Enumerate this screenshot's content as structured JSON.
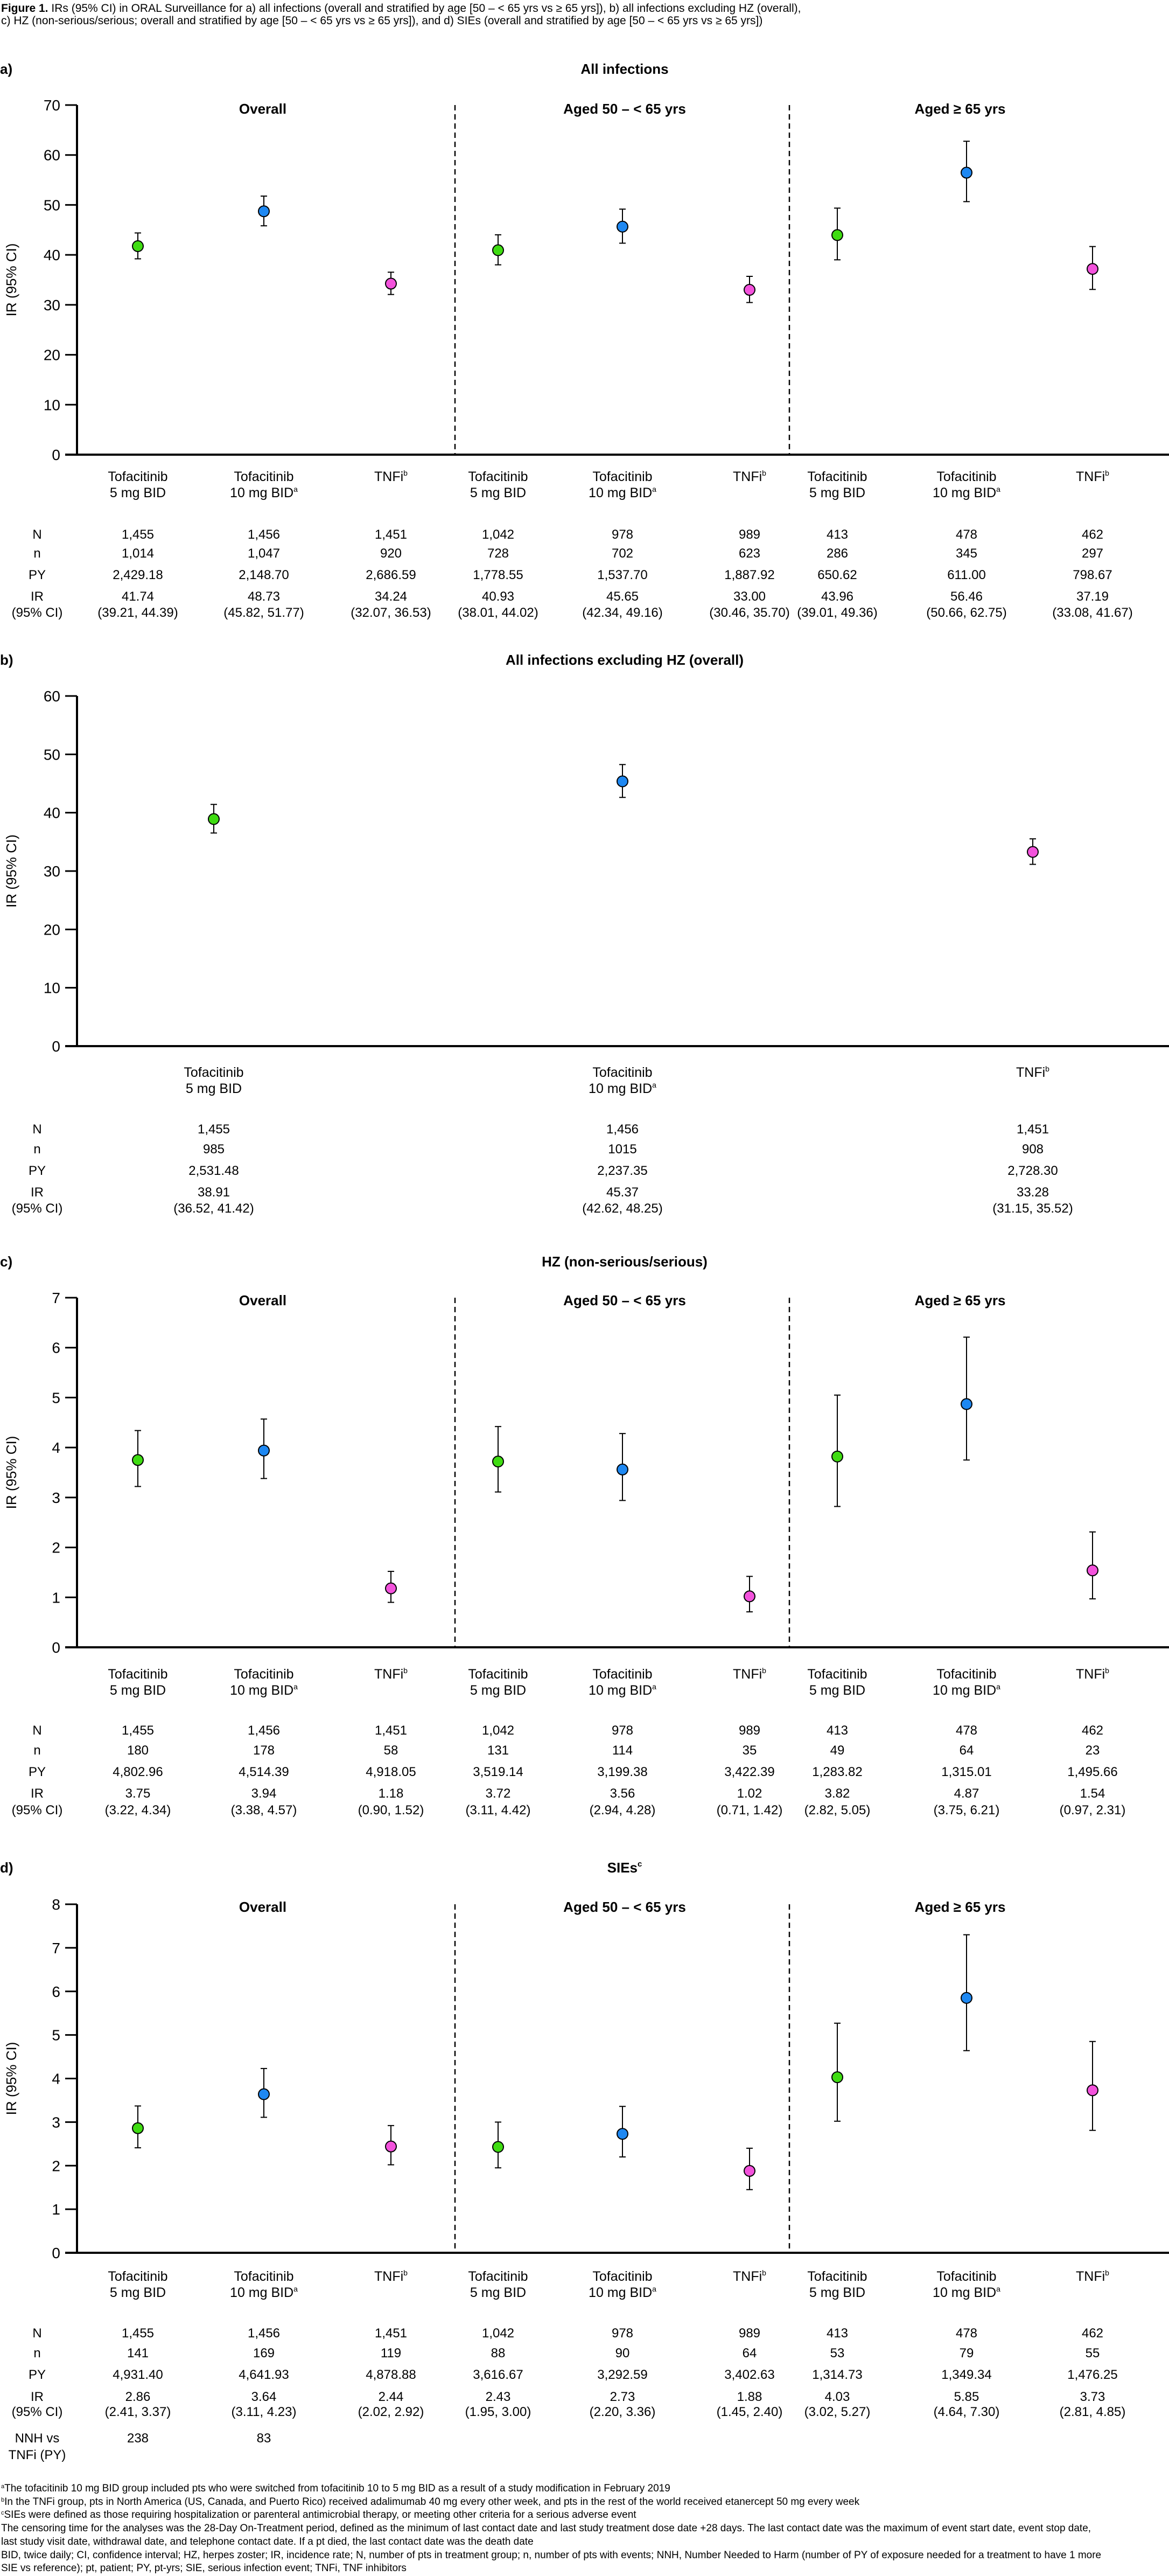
{
  "caption": {
    "label": "Figure 1.",
    "line1": " IRs (95% CI) in ORAL Surveillance for a) all infections (overall and stratified by age [50 – < 65 yrs vs ≥ 65 yrs]), b) all infections excluding HZ (overall),",
    "line2": "c) HZ (non-serious/serious; overall and stratified by age [50 – < 65 yrs vs ≥ 65 yrs]), and d) SIEs (overall and stratified by age [50 – < 65 yrs vs ≥ 65 yrs])"
  },
  "colors": {
    "tofa5": "#3fdc12",
    "tofa10": "#1e88f2",
    "tnfi": "#f352dc"
  },
  "chart_data": [
    {
      "type": "scatter",
      "panel_label": "a)",
      "title": "All infections",
      "title_sup": "",
      "ylabel": "IR (95% CI)",
      "ylim": [
        0,
        70
      ],
      "yticks": [
        "0",
        "10",
        "20",
        "30",
        "40",
        "50",
        "60",
        "70"
      ],
      "grid": false,
      "sections": [
        "Overall",
        "Aged 50 – < 65 yrs",
        "Aged ≥ 65 yrs"
      ],
      "categories": [
        {
          "line1": "Tofacitinib",
          "line2": "5 mg BID",
          "sup": ""
        },
        {
          "line1": "Tofacitinib",
          "line2": "10 mg BID",
          "sup": "a"
        },
        {
          "line1": "TNFi",
          "line2": "",
          "sup": "b"
        },
        {
          "line1": "Tofacitinib",
          "line2": "5 mg BID",
          "sup": ""
        },
        {
          "line1": "Tofacitinib",
          "line2": "10 mg BID",
          "sup": "a"
        },
        {
          "line1": "TNFi",
          "line2": "",
          "sup": "b"
        },
        {
          "line1": "Tofacitinib",
          "line2": "5 mg BID",
          "sup": ""
        },
        {
          "line1": "Tofacitinib",
          "line2": "10 mg BID",
          "sup": "a"
        },
        {
          "line1": "TNFi",
          "line2": "",
          "sup": "b"
        }
      ],
      "values": [
        41.74,
        48.73,
        34.24,
        40.93,
        45.65,
        33.0,
        43.96,
        56.46,
        37.19
      ],
      "ci_low": [
        39.21,
        45.82,
        32.07,
        38.01,
        42.34,
        30.46,
        39.01,
        50.66,
        33.08
      ],
      "ci_high": [
        44.39,
        51.77,
        36.53,
        44.02,
        49.16,
        35.7,
        49.36,
        62.75,
        41.67
      ],
      "table": {
        "row_labels": [
          "N",
          "n",
          "PY",
          "IR",
          "(95% CI)"
        ],
        "columns": [
          [
            "1,455",
            "1,014",
            "2,429.18",
            "41.74",
            "(39.21, 44.39)"
          ],
          [
            "1,456",
            "1,047",
            "2,148.70",
            "48.73",
            "(45.82, 51.77)"
          ],
          [
            "1,451",
            "920",
            "2,686.59",
            "34.24",
            "(32.07, 36.53)"
          ],
          [
            "1,042",
            "728",
            "1,778.55",
            "40.93",
            "(38.01, 44.02)"
          ],
          [
            "978",
            "702",
            "1,537.70",
            "45.65",
            "(42.34, 49.16)"
          ],
          [
            "989",
            "623",
            "1,887.92",
            "33.00",
            "(30.46, 35.70)"
          ],
          [
            "413",
            "286",
            "650.62",
            "43.96",
            "(39.01, 49.36)"
          ],
          [
            "478",
            "345",
            "611.00",
            "56.46",
            "(50.66, 62.75)"
          ],
          [
            "462",
            "297",
            "798.67",
            "37.19",
            "(33.08, 41.67)"
          ]
        ]
      }
    },
    {
      "type": "scatter",
      "panel_label": "b)",
      "title": "All infections excluding HZ (overall)",
      "title_sup": "",
      "ylabel": "IR (95% CI)",
      "ylim": [
        0,
        60
      ],
      "yticks": [
        "0",
        "10",
        "20",
        "30",
        "40",
        "50",
        "60"
      ],
      "grid": false,
      "sections": [],
      "categories": [
        {
          "line1": "Tofacitinib",
          "line2": "5 mg BID",
          "sup": ""
        },
        {
          "line1": "Tofacitinib",
          "line2": "10 mg BID",
          "sup": "a"
        },
        {
          "line1": "TNFi",
          "line2": "",
          "sup": "b"
        }
      ],
      "values": [
        38.91,
        45.37,
        33.28
      ],
      "ci_low": [
        36.52,
        42.62,
        31.15
      ],
      "ci_high": [
        41.42,
        48.25,
        35.52
      ],
      "table": {
        "row_labels": [
          "N",
          "n",
          "PY",
          "IR",
          "(95% CI)"
        ],
        "columns": [
          [
            "1,455",
            "985",
            "2,531.48",
            "38.91",
            "(36.52, 41.42)"
          ],
          [
            "1,456",
            "1015",
            "2,237.35",
            "45.37",
            "(42.62, 48.25)"
          ],
          [
            "1,451",
            "908",
            "2,728.30",
            "33.28",
            "(31.15, 35.52)"
          ]
        ]
      }
    },
    {
      "type": "scatter",
      "panel_label": "c)",
      "title": "HZ (non-serious/serious)",
      "title_sup": "",
      "ylabel": "IR (95% CI)",
      "ylim": [
        0,
        7
      ],
      "yticks": [
        "0",
        "1",
        "2",
        "3",
        "4",
        "5",
        "6",
        "7"
      ],
      "grid": false,
      "sections": [
        "Overall",
        "Aged 50 – < 65 yrs",
        "Aged ≥ 65 yrs"
      ],
      "categories": [
        {
          "line1": "Tofacitinib",
          "line2": "5 mg BID",
          "sup": ""
        },
        {
          "line1": "Tofacitinib",
          "line2": "10 mg BID",
          "sup": "a"
        },
        {
          "line1": "TNFi",
          "line2": "",
          "sup": "b"
        },
        {
          "line1": "Tofacitinib",
          "line2": "5 mg BID",
          "sup": ""
        },
        {
          "line1": "Tofacitinib",
          "line2": "10 mg BID",
          "sup": "a"
        },
        {
          "line1": "TNFi",
          "line2": "",
          "sup": "b"
        },
        {
          "line1": "Tofacitinib",
          "line2": "5 mg BID",
          "sup": ""
        },
        {
          "line1": "Tofacitinib",
          "line2": "10 mg BID",
          "sup": "a"
        },
        {
          "line1": "TNFi",
          "line2": "",
          "sup": "b"
        }
      ],
      "values": [
        3.75,
        3.94,
        1.18,
        3.72,
        3.56,
        1.02,
        3.82,
        4.87,
        1.54
      ],
      "ci_low": [
        3.22,
        3.38,
        0.9,
        3.11,
        2.94,
        0.71,
        2.82,
        3.75,
        0.97
      ],
      "ci_high": [
        4.34,
        4.57,
        1.52,
        4.42,
        4.28,
        1.42,
        5.05,
        6.21,
        2.31
      ],
      "table": {
        "row_labels": [
          "N",
          "n",
          "PY",
          "IR",
          "(95% CI)"
        ],
        "columns": [
          [
            "1,455",
            "180",
            "4,802.96",
            "3.75",
            "(3.22, 4.34)"
          ],
          [
            "1,456",
            "178",
            "4,514.39",
            "3.94",
            "(3.38, 4.57)"
          ],
          [
            "1,451",
            "58",
            "4,918.05",
            "1.18",
            "(0.90, 1.52)"
          ],
          [
            "1,042",
            "131",
            "3,519.14",
            "3.72",
            "(3.11, 4.42)"
          ],
          [
            "978",
            "114",
            "3,199.38",
            "3.56",
            "(2.94, 4.28)"
          ],
          [
            "989",
            "35",
            "3,422.39",
            "1.02",
            "(0.71, 1.42)"
          ],
          [
            "413",
            "49",
            "1,283.82",
            "3.82",
            "(2.82, 5.05)"
          ],
          [
            "478",
            "64",
            "1,315.01",
            "4.87",
            "(3.75, 6.21)"
          ],
          [
            "462",
            "23",
            "1,495.66",
            "1.54",
            "(0.97, 2.31)"
          ]
        ]
      }
    },
    {
      "type": "scatter",
      "panel_label": "d)",
      "title": "SIEs",
      "title_sup": "c",
      "ylabel": "IR (95% CI)",
      "ylim": [
        0,
        8
      ],
      "yticks": [
        "0",
        "1",
        "2",
        "3",
        "4",
        "5",
        "6",
        "7",
        "8"
      ],
      "grid": false,
      "sections": [
        "Overall",
        "Aged 50 – < 65 yrs",
        "Aged ≥ 65 yrs"
      ],
      "categories": [
        {
          "line1": "Tofacitinib",
          "line2": "5 mg BID",
          "sup": ""
        },
        {
          "line1": "Tofacitinib",
          "line2": "10 mg BID",
          "sup": "a"
        },
        {
          "line1": "TNFi",
          "line2": "",
          "sup": "b"
        },
        {
          "line1": "Tofacitinib",
          "line2": "5 mg BID",
          "sup": ""
        },
        {
          "line1": "Tofacitinib",
          "line2": "10 mg BID",
          "sup": "a"
        },
        {
          "line1": "TNFi",
          "line2": "",
          "sup": "b"
        },
        {
          "line1": "Tofacitinib",
          "line2": "5 mg BID",
          "sup": ""
        },
        {
          "line1": "Tofacitinib",
          "line2": "10 mg BID",
          "sup": "a"
        },
        {
          "line1": "TNFi",
          "line2": "",
          "sup": "b"
        }
      ],
      "values": [
        2.86,
        3.64,
        2.44,
        2.43,
        2.73,
        1.88,
        4.03,
        5.85,
        3.73
      ],
      "ci_low": [
        2.41,
        3.11,
        2.02,
        1.95,
        2.2,
        1.45,
        3.02,
        4.64,
        2.81
      ],
      "ci_high": [
        3.37,
        4.23,
        2.92,
        3.0,
        3.36,
        2.4,
        5.27,
        7.3,
        4.85
      ],
      "table": {
        "row_labels": [
          "N",
          "n",
          "PY",
          "IR",
          "(95% CI)"
        ],
        "columns": [
          [
            "1,455",
            "141",
            "4,931.40",
            "2.86",
            "(2.41, 3.37)"
          ],
          [
            "1,456",
            "169",
            "4,641.93",
            "3.64",
            "(3.11, 4.23)"
          ],
          [
            "1,451",
            "119",
            "4,878.88",
            "2.44",
            "(2.02, 2.92)"
          ],
          [
            "1,042",
            "88",
            "3,616.67",
            "2.43",
            "(1.95, 3.00)"
          ],
          [
            "978",
            "90",
            "3,292.59",
            "2.73",
            "(2.20, 3.36)"
          ],
          [
            "989",
            "64",
            "3,402.63",
            "1.88",
            "(1.45, 2.40)"
          ],
          [
            "413",
            "53",
            "1,314.73",
            "4.03",
            "(3.02, 5.27)"
          ],
          [
            "478",
            "79",
            "1,349.34",
            "5.85",
            "(4.64, 7.30)"
          ],
          [
            "462",
            "55",
            "1,476.25",
            "3.73",
            "(2.81, 4.85)"
          ]
        ],
        "nnh": {
          "label1": "NNH vs",
          "label2": "TNFi (PY)",
          "values": [
            "238",
            "83"
          ]
        }
      }
    }
  ],
  "footnotes": [
    {
      "sup": "a",
      "text": "The tofacitinib 10 mg BID group included pts who were switched from tofacitinib 10 to 5 mg BID as a result of a study modification in February 2019"
    },
    {
      "sup": "b",
      "text": "In the TNFi group, pts in North America (US, Canada, and Puerto Rico) received adalimumab 40 mg every other week, and pts in the rest of the world received etanercept 50 mg every week"
    },
    {
      "sup": "c",
      "text": "SIEs were defined as those requiring hospitalization or parenteral antimicrobial therapy, or meeting other criteria for a serious adverse event"
    },
    {
      "sup": "",
      "text": "The censoring time for the analyses was the 28-Day On-Treatment period, defined as the minimum of last contact date and last study treatment dose date +28 days. The last contact date was the maximum of event start date, event stop date,"
    },
    {
      "sup": "",
      "text": "last study visit date, withdrawal date, and telephone contact date. If a pt died, the last contact date was the death date"
    },
    {
      "sup": "",
      "text": "BID, twice daily; CI, confidence interval; HZ, herpes zoster; IR, incidence rate; N, number of pts in treatment group; n, number of pts with events; NNH, Number Needed to Harm (number of PY of exposure needed for a treatment to have 1 more"
    },
    {
      "sup": "",
      "text": "SIE vs reference); pt, patient; PY, pt-yrs; SIE, serious infection event; TNFi, TNF inhibitors"
    }
  ]
}
